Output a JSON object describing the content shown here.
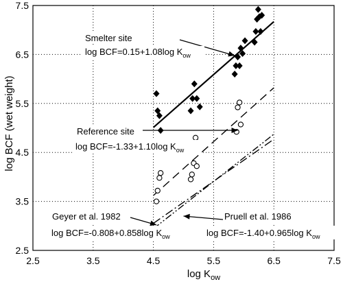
{
  "chart_data": {
    "type": "scatter",
    "xlabel": "log K",
    "xlabel_sub": "ow",
    "ylabel": "log BCF (wet weight)",
    "xlim": [
      2.5,
      7.5
    ],
    "ylim": [
      2.5,
      7.5
    ],
    "xticks": [
      2.5,
      3.5,
      4.5,
      5.5,
      6.5,
      7.5
    ],
    "yticks": [
      2.5,
      3.5,
      4.5,
      5.5,
      6.5,
      7.5
    ],
    "x_tick_labels": [
      "2.5",
      "3.5",
      "4.5",
      "5.5",
      "6.5",
      "7.5"
    ],
    "y_tick_labels": [
      "2.5",
      "3.5",
      "4.5",
      "5.5",
      "6.5",
      "7.5"
    ],
    "grid": "dotted",
    "series": [
      {
        "name": "Smelter site",
        "marker": "filled-diamond",
        "points": [
          [
            4.55,
            5.7
          ],
          [
            4.57,
            5.35
          ],
          [
            4.6,
            5.25
          ],
          [
            4.62,
            4.95
          ],
          [
            5.12,
            5.35
          ],
          [
            5.15,
            5.6
          ],
          [
            5.18,
            5.9
          ],
          [
            5.22,
            5.6
          ],
          [
            5.27,
            5.43
          ],
          [
            5.85,
            6.1
          ],
          [
            5.87,
            6.27
          ],
          [
            5.9,
            6.45
          ],
          [
            5.93,
            6.27
          ],
          [
            5.95,
            6.63
          ],
          [
            5.98,
            6.52
          ],
          [
            6.02,
            6.78
          ],
          [
            6.18,
            6.75
          ],
          [
            6.2,
            6.97
          ],
          [
            6.22,
            7.22
          ],
          [
            6.24,
            7.42
          ],
          [
            6.26,
            7.27
          ],
          [
            6.28,
            6.97
          ],
          [
            6.3,
            7.3
          ]
        ]
      },
      {
        "name": "Reference site",
        "marker": "open-circle",
        "points": [
          [
            4.55,
            3.5
          ],
          [
            4.57,
            3.72
          ],
          [
            4.6,
            3.98
          ],
          [
            4.62,
            4.08
          ],
          [
            5.12,
            3.95
          ],
          [
            5.14,
            4.05
          ],
          [
            5.17,
            4.28
          ],
          [
            5.2,
            4.8
          ],
          [
            5.22,
            4.22
          ],
          [
            5.24,
            4.7
          ],
          [
            5.88,
            4.92
          ],
          [
            5.9,
            5.42
          ],
          [
            5.93,
            5.52
          ],
          [
            5.95,
            5.07
          ]
        ]
      }
    ],
    "lines": [
      {
        "name": "Smelter site",
        "intercept": 0.15,
        "slope": 1.08,
        "x_range": [
          4.5,
          6.5
        ],
        "style": "solid"
      },
      {
        "name": "Reference site",
        "intercept": -1.33,
        "slope": 1.1,
        "x_range": [
          4.5,
          6.5
        ],
        "style": "dashed"
      },
      {
        "name": "Geyer et al. 1982",
        "intercept": -0.808,
        "slope": 0.858,
        "x_range": [
          4.5,
          6.5
        ],
        "style": "dash-dot"
      },
      {
        "name": "Pruell et al. 1986",
        "intercept": -1.4,
        "slope": 0.965,
        "x_range": [
          4.5,
          6.5
        ],
        "style": "dash-dot-dot"
      }
    ],
    "annotations": [
      {
        "id": "smelter",
        "title": "Smelter site",
        "eq_main": "log BCF=0.15+1.08log K",
        "eq_sub": "ow"
      },
      {
        "id": "reference",
        "title": "Reference site",
        "eq_main": "log BCF=-1.33+1.10log K",
        "eq_sub": "ow"
      },
      {
        "id": "geyer",
        "title": "Geyer et al. 1982",
        "eq_main": "log BCF=-0.808+0.858log K",
        "eq_sub": "ow"
      },
      {
        "id": "pruell",
        "title": "Pruell et al. 1986",
        "eq_main": "log BCF=-1.40+0.965log K",
        "eq_sub": "ow"
      }
    ]
  }
}
